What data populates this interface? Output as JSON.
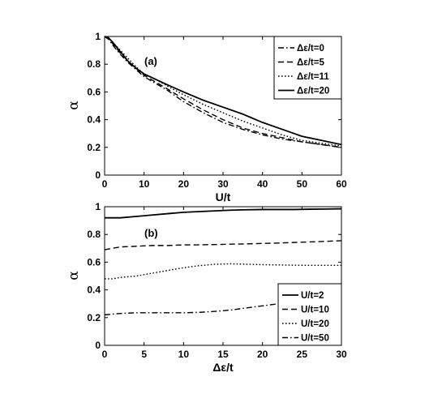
{
  "chart_data": [
    {
      "type": "line",
      "panel_label": "(a)",
      "xlabel": "U/t",
      "ylabel": "α",
      "xlim": [
        0,
        60
      ],
      "ylim": [
        0,
        1
      ],
      "xticks": [
        0,
        10,
        20,
        30,
        40,
        50,
        60
      ],
      "yticks": [
        0,
        0.2,
        0.4,
        0.6,
        0.8,
        1
      ],
      "ytick_labels": [
        "0",
        "0.2",
        "0.4",
        "0.6",
        "0.8",
        "1"
      ],
      "legend_position": "top-right",
      "grid": false,
      "series": [
        {
          "name": "Δε/t=0",
          "style": "dashdot",
          "x": [
            0,
            1,
            2,
            4,
            6,
            8,
            10,
            13,
            16,
            20,
            25,
            30,
            35,
            40,
            45,
            50,
            55,
            60
          ],
          "y": [
            1.0,
            0.98,
            0.94,
            0.87,
            0.81,
            0.76,
            0.71,
            0.66,
            0.61,
            0.53,
            0.45,
            0.38,
            0.33,
            0.29,
            0.26,
            0.24,
            0.22,
            0.2
          ]
        },
        {
          "name": "Δε/t=5",
          "style": "dashed",
          "x": [
            0,
            1,
            2,
            4,
            6,
            8,
            10,
            13,
            16,
            20,
            25,
            30,
            35,
            40,
            45,
            50,
            55,
            60
          ],
          "y": [
            1.0,
            0.98,
            0.95,
            0.88,
            0.82,
            0.77,
            0.72,
            0.67,
            0.62,
            0.55,
            0.47,
            0.4,
            0.34,
            0.3,
            0.27,
            0.24,
            0.22,
            0.2
          ]
        },
        {
          "name": "Δε/t=11",
          "style": "dotted",
          "x": [
            0,
            1,
            2,
            4,
            6,
            8,
            10,
            13,
            16,
            20,
            25,
            30,
            35,
            40,
            45,
            50,
            55,
            60
          ],
          "y": [
            1.0,
            0.99,
            0.96,
            0.9,
            0.84,
            0.78,
            0.73,
            0.69,
            0.64,
            0.58,
            0.51,
            0.45,
            0.39,
            0.34,
            0.29,
            0.25,
            0.23,
            0.21
          ]
        },
        {
          "name": "Δε/t=20",
          "style": "solid",
          "x": [
            0,
            1,
            2,
            4,
            6,
            8,
            10,
            13,
            16,
            20,
            25,
            30,
            35,
            40,
            45,
            50,
            55,
            60
          ],
          "y": [
            1.0,
            0.99,
            0.96,
            0.89,
            0.82,
            0.77,
            0.73,
            0.69,
            0.65,
            0.6,
            0.54,
            0.49,
            0.44,
            0.38,
            0.33,
            0.28,
            0.25,
            0.22
          ]
        }
      ]
    },
    {
      "type": "line",
      "panel_label": "(b)",
      "xlabel": "Δε/t",
      "ylabel": "α",
      "xlim": [
        0,
        30
      ],
      "ylim": [
        0,
        1
      ],
      "xticks": [
        0,
        5,
        10,
        15,
        20,
        25,
        30
      ],
      "yticks": [
        0,
        0.2,
        0.4,
        0.6,
        0.8,
        1
      ],
      "ytick_labels": [
        "0",
        "0.2",
        "0.4",
        "0.6",
        "0.8",
        "1"
      ],
      "legend_position": "bottom-right",
      "grid": false,
      "series": [
        {
          "name": "U/t=2",
          "style": "solid",
          "x": [
            0,
            1,
            2,
            4,
            6,
            8,
            10,
            12,
            14,
            16,
            18,
            20,
            22,
            24,
            26,
            28,
            30
          ],
          "y": [
            0.92,
            0.92,
            0.92,
            0.93,
            0.94,
            0.95,
            0.96,
            0.965,
            0.97,
            0.975,
            0.978,
            0.98,
            0.98,
            0.98,
            0.982,
            0.983,
            0.985
          ]
        },
        {
          "name": "U/t=10",
          "style": "dashed",
          "x": [
            0,
            1,
            2,
            4,
            6,
            8,
            10,
            12,
            14,
            16,
            18,
            20,
            22,
            24,
            26,
            28,
            30
          ],
          "y": [
            0.69,
            0.7,
            0.71,
            0.715,
            0.72,
            0.72,
            0.725,
            0.725,
            0.727,
            0.73,
            0.732,
            0.735,
            0.738,
            0.742,
            0.746,
            0.75,
            0.755
          ]
        },
        {
          "name": "U/t=20",
          "style": "dotted",
          "x": [
            0,
            1,
            2,
            4,
            6,
            8,
            10,
            12,
            14,
            16,
            18,
            20,
            22,
            24,
            26,
            28,
            30
          ],
          "y": [
            0.48,
            0.48,
            0.49,
            0.5,
            0.52,
            0.54,
            0.56,
            0.575,
            0.585,
            0.588,
            0.585,
            0.582,
            0.58,
            0.578,
            0.577,
            0.577,
            0.577
          ]
        },
        {
          "name": "U/t=50",
          "style": "dashdot",
          "x": [
            0,
            1,
            2,
            4,
            6,
            8,
            10,
            12,
            14,
            16,
            18,
            20,
            22,
            24,
            26,
            28,
            30
          ],
          "y": [
            0.22,
            0.225,
            0.23,
            0.235,
            0.235,
            0.235,
            0.235,
            0.238,
            0.245,
            0.255,
            0.27,
            0.285,
            0.3,
            0.315,
            0.33,
            0.345,
            0.36
          ]
        }
      ]
    }
  ]
}
